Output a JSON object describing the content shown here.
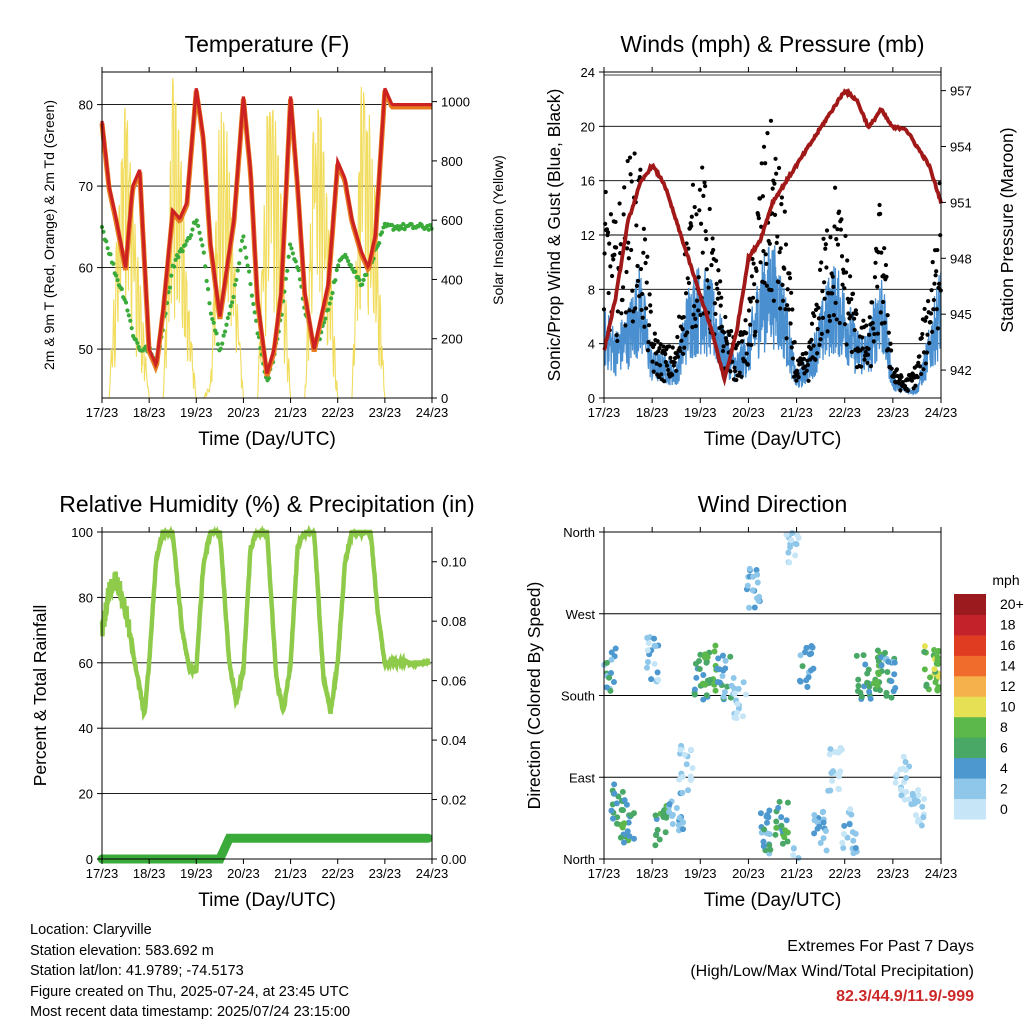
{
  "shared": {
    "x_tick_labels": [
      "17/23",
      "18/23",
      "19/23",
      "20/23",
      "21/23",
      "22/23",
      "23/23",
      "24/23"
    ],
    "x_axis_label": "Time (Day/UTC)"
  },
  "colors": {
    "temperature_2m": "#cc2222",
    "temperature_9m": "#e87a20",
    "dewpoint": "#3aab3a",
    "solar": "#f0d84a",
    "wind_avg": "#4a90d0",
    "gust": "#000000",
    "pressure": "#a01818",
    "humidity": "#8fcb4a",
    "rainfall": "#3aaa3a"
  },
  "chart_data": [
    {
      "type": "line",
      "title": "Temperature (F)",
      "xlabel": "Time (Day/UTC)",
      "ylabel": "2m & 9m T (Red, Orange) & 2m Td (Green)",
      "y2label": "Solar Insolation (Yellow)",
      "ylim": [
        44,
        84
      ],
      "y2lim": [
        0,
        1100
      ],
      "yticks": [
        50,
        60,
        70,
        80
      ],
      "y2ticks": [
        0,
        200,
        400,
        600,
        800,
        1000
      ],
      "grid": true,
      "x": [
        0,
        0.15,
        0.3,
        0.5,
        0.65,
        0.8,
        1.0,
        1.15,
        1.3,
        1.5,
        1.65,
        1.8,
        2.0,
        2.15,
        2.3,
        2.5,
        2.65,
        2.8,
        3.0,
        3.15,
        3.3,
        3.5,
        3.65,
        3.8,
        4.0,
        4.15,
        4.3,
        4.5,
        4.65,
        4.8,
        5.0,
        5.15,
        5.3,
        5.5,
        5.65,
        5.8,
        6.0,
        6.15,
        6.3,
        6.5,
        6.65,
        6.8,
        7.0
      ],
      "series": [
        {
          "name": "2m T",
          "axis": "left",
          "values": [
            78,
            70,
            66,
            60,
            70,
            72,
            50,
            48,
            55,
            67,
            66,
            68,
            82,
            76,
            63,
            54,
            60,
            66,
            81,
            72,
            56,
            47,
            50,
            57,
            81,
            70,
            57,
            50,
            54,
            58,
            73,
            71,
            66,
            62,
            60,
            64,
            82,
            80,
            80,
            80,
            80,
            80,
            80
          ]
        },
        {
          "name": "Td",
          "axis": "left",
          "values": [
            65,
            62,
            59,
            56,
            52,
            50,
            50,
            48,
            53,
            60,
            62,
            63,
            66,
            62,
            55,
            50,
            53,
            57,
            64,
            58,
            52,
            46,
            49,
            54,
            63,
            60,
            55,
            50,
            52,
            55,
            60,
            62,
            60,
            58,
            60,
            62,
            65,
            65,
            65,
            65,
            65,
            65,
            65
          ]
        },
        {
          "name": "Solar",
          "axis": "right",
          "values": [
            0,
            0,
            500,
            1050,
            700,
            400,
            0,
            0,
            0,
            1080,
            900,
            400,
            0,
            0,
            50,
            1000,
            900,
            500,
            0,
            0,
            0,
            950,
            1000,
            700,
            0,
            0,
            0,
            1000,
            950,
            600,
            0,
            0,
            0,
            1050,
            1000,
            700,
            0,
            0,
            0,
            0,
            0,
            0,
            0
          ]
        }
      ]
    },
    {
      "type": "scatter",
      "title": "Winds (mph) & Pressure (mb)",
      "xlabel": "Time (Day/UTC)",
      "ylabel": "Sonic/Prop Wind & Gust (Blue, Black)",
      "y2label": "Station Pressure (Maroon)",
      "ylim": [
        0,
        24
      ],
      "y2lim": [
        940.5,
        958
      ],
      "yticks": [
        0,
        4,
        8,
        12,
        16,
        20,
        24
      ],
      "y2ticks": [
        942,
        945,
        948,
        951,
        954,
        957
      ],
      "grid": true,
      "x": [
        0,
        0.25,
        0.5,
        0.75,
        1.0,
        1.25,
        1.5,
        1.75,
        2.0,
        2.25,
        2.5,
        2.75,
        3.0,
        3.25,
        3.5,
        3.75,
        4.0,
        4.25,
        4.5,
        4.75,
        5.0,
        5.25,
        5.5,
        5.75,
        6.0,
        6.25,
        6.5,
        6.75,
        7.0
      ],
      "series": [
        {
          "name": "Wind",
          "axis": "left",
          "values": [
            4,
            3,
            4,
            6,
            2,
            2,
            1.5,
            5,
            6,
            5,
            3,
            2,
            3,
            6,
            7,
            5,
            1,
            2,
            4,
            6,
            5,
            3,
            3,
            6,
            1,
            0.5,
            0.5,
            3,
            6
          ]
        },
        {
          "name": "Gust",
          "axis": "left",
          "values": [
            12,
            10,
            14,
            14,
            4,
            3,
            3,
            11,
            14,
            10,
            5,
            3,
            5,
            14,
            16,
            11,
            2,
            3,
            8,
            13,
            10,
            5,
            4,
            12,
            2,
            1,
            2,
            7,
            14
          ]
        },
        {
          "name": "Pressure",
          "axis": "right",
          "values": [
            943,
            946,
            950,
            952,
            953,
            952,
            950,
            948,
            946,
            944,
            941.5,
            944,
            948,
            949,
            951,
            952,
            953,
            954,
            955,
            956,
            957,
            956.5,
            955,
            956,
            955,
            955,
            954,
            953,
            951
          ]
        }
      ]
    },
    {
      "type": "line",
      "title": "Relative Humidity (%) & Precipitation (in)",
      "xlabel": "Time (Day/UTC)",
      "ylabel": "Percent & Total Rainfall",
      "ylim": [
        0,
        100
      ],
      "y2lim": [
        0,
        0.11
      ],
      "yticks": [
        0,
        20,
        40,
        60,
        80,
        100
      ],
      "y2ticks": [
        0.0,
        0.02,
        0.04,
        0.06,
        0.08,
        0.1
      ],
      "grid": true,
      "x": [
        0,
        0.15,
        0.3,
        0.5,
        0.7,
        0.9,
        1.0,
        1.15,
        1.3,
        1.5,
        1.7,
        1.85,
        2.0,
        2.15,
        2.3,
        2.5,
        2.7,
        2.85,
        3.0,
        3.15,
        3.3,
        3.5,
        3.7,
        3.85,
        4.0,
        4.15,
        4.3,
        4.5,
        4.7,
        4.85,
        5.0,
        5.15,
        5.3,
        5.5,
        5.7,
        5.85,
        6.0,
        6.15,
        6.3,
        6.5,
        6.7,
        6.85,
        7.0
      ],
      "series": [
        {
          "name": "RH",
          "axis": "left",
          "values": [
            70,
            82,
            86,
            76,
            60,
            44,
            60,
            92,
            100,
            100,
            70,
            58,
            58,
            90,
            100,
            100,
            60,
            48,
            58,
            95,
            100,
            100,
            55,
            45,
            60,
            95,
            100,
            100,
            55,
            45,
            60,
            90,
            100,
            100,
            100,
            75,
            60,
            60,
            60,
            60,
            60,
            60,
            60
          ]
        },
        {
          "name": "Rain",
          "axis": "right",
          "values": [
            0,
            0,
            0,
            0,
            0,
            0,
            0,
            0,
            0,
            0,
            0,
            0,
            0,
            0,
            0,
            0,
            0.007,
            0.007,
            0.007,
            0.007,
            0.007,
            0.007,
            0.007,
            0.007,
            0.007,
            0.007,
            0.007,
            0.007,
            0.007,
            0.007,
            0.007,
            0.007,
            0.007,
            0.007,
            0.007,
            0.007,
            0.007,
            0.007,
            0.007,
            0.007,
            0.007,
            0.007,
            0.007
          ]
        }
      ]
    },
    {
      "type": "scatter",
      "title": "Wind Direction",
      "xlabel": "Time (Day/UTC)",
      "ylabel": "Direction (Colored By Speed)",
      "ylim": [
        0,
        360
      ],
      "yticks": [
        0,
        90,
        180,
        270,
        360
      ],
      "ytick_labels": [
        "North",
        "East",
        "South",
        "West",
        "North"
      ],
      "colorbar": {
        "title": "mph",
        "labels": [
          "0",
          "2",
          "4",
          "6",
          "8",
          "10",
          "12",
          "14",
          "16",
          "18",
          "20+"
        ],
        "colors": [
          "#c6e6f7",
          "#8ec7ea",
          "#4d98cf",
          "#4aa867",
          "#5cb84a",
          "#e6e055",
          "#f5b24c",
          "#ef6c2c",
          "#e03c22",
          "#c4222a",
          "#9b1a1e"
        ]
      },
      "x": [
        0.1,
        0.3,
        0.5,
        1.0,
        1.2,
        1.5,
        1.7,
        2.0,
        2.2,
        2.5,
        2.8,
        3.1,
        3.4,
        3.7,
        3.9,
        4.2,
        4.5,
        4.8,
        5.1,
        5.4,
        5.7,
        5.9,
        6.2,
        6.5,
        6.8,
        7.0
      ],
      "values": [
        210,
        60,
        40,
        220,
        40,
        50,
        100,
        200,
        210,
        200,
        180,
        300,
        30,
        40,
        350,
        210,
        30,
        100,
        30,
        200,
        210,
        200,
        90,
        60,
        210,
        210
      ],
      "speeds": [
        4,
        6,
        6,
        2,
        6,
        3,
        1,
        6,
        7,
        4,
        1,
        3,
        4,
        6,
        1,
        4,
        3,
        1,
        2,
        5,
        7,
        4,
        1,
        1,
        8,
        8
      ]
    }
  ],
  "info": {
    "location": "Location: Claryville",
    "elevation": "Station elevation: 583.692 m",
    "latlon": "Station lat/lon: 41.9789; -74.5173",
    "created": "Figure created on Thu, 2025-07-24, at 23:45 UTC",
    "timestamp": "Most recent data timestamp: 2025/07/24 23:15:00"
  },
  "extremes": {
    "title": "Extremes For Past 7 Days",
    "subtitle": "(High/Low/Max Wind/Total Precipitation)",
    "values": "82.3/44.9/11.9/-999"
  }
}
